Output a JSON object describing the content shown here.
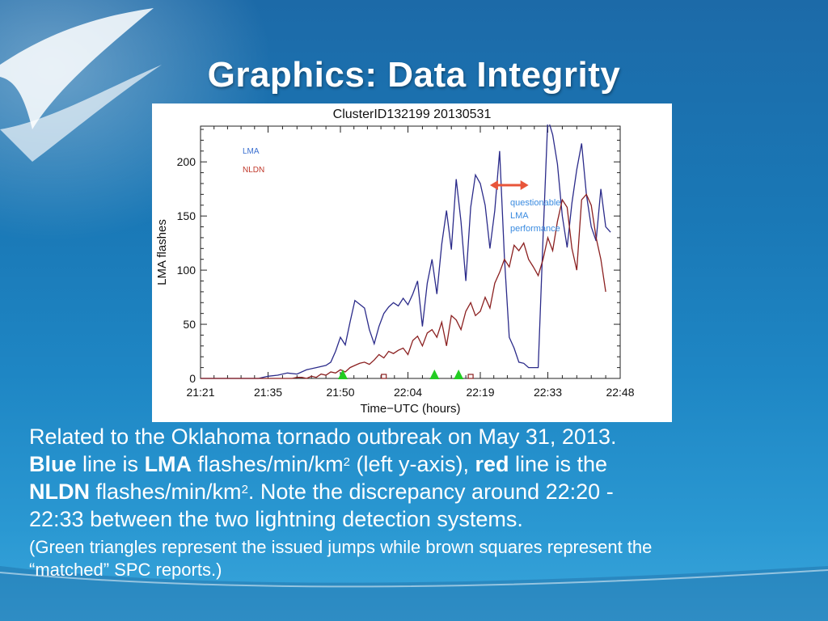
{
  "slide": {
    "title": "Graphics: Data Integrity",
    "body": {
      "line1": "Related to the Oklahoma tornado outbreak on May 31, 2013.",
      "blue_word": "Blue",
      "t1": " line is ",
      "lma_word": "LMA",
      "t2": " flashes/min/km",
      "sup1": "2",
      "t3": " (left y-axis), ",
      "red_word": "red",
      "t4": " line is the",
      "nldn_word": "NLDN",
      "t5": " flashes/min/km",
      "sup2": "2",
      "t6": ". Note the discrepancy around 22:20 -",
      "t7": "22:33 between the two lightning detection systems.",
      "note_line1": "(Green triangles represent the issued jumps while brown squares represent the",
      "note_line2": "“matched” SPC reports.)"
    }
  },
  "colors": {
    "lma": "#2b2b8a",
    "nldn": "#8b2020",
    "triangle": "#22cc22",
    "square": "#8b2020",
    "arrow": "#e8553a",
    "annotation": "#3a8be0"
  },
  "chart_data": {
    "type": "line",
    "title": "ClusterID132199 20130531",
    "xlabel": "Time−UTC (hours)",
    "ylabel": "LMA flashes",
    "xlim": [
      0,
      87
    ],
    "ylim": [
      0,
      233
    ],
    "x_ticks": [
      {
        "x": 0,
        "label": "21:21"
      },
      {
        "x": 14,
        "label": "21:35"
      },
      {
        "x": 29,
        "label": "21:50"
      },
      {
        "x": 43,
        "label": "22:04"
      },
      {
        "x": 58,
        "label": "22:19"
      },
      {
        "x": 72,
        "label": "22:33"
      },
      {
        "x": 87,
        "label": "22:48"
      }
    ],
    "y_ticks": [
      0,
      50,
      100,
      150,
      200
    ],
    "legend": [
      "LMA",
      "NLDN"
    ],
    "legend_placement": "top-left",
    "grid": false,
    "series": [
      {
        "name": "LMA",
        "x": [
          0,
          12,
          14,
          16,
          18,
          20,
          22,
          24,
          26,
          27,
          28,
          29,
          30,
          31,
          32,
          34,
          35,
          36,
          37,
          38,
          39,
          40,
          41,
          42,
          43,
          44,
          45,
          46,
          47,
          48,
          49,
          50,
          51,
          52,
          53,
          54,
          55,
          56,
          57,
          58,
          59,
          60,
          61,
          62,
          63,
          64,
          65,
          66,
          67,
          68,
          69,
          70,
          71,
          72,
          73,
          74,
          75,
          76,
          77,
          78,
          79,
          80,
          81,
          82,
          83,
          84,
          85
        ],
        "values": [
          0,
          0,
          2,
          3,
          5,
          4,
          8,
          10,
          12,
          15,
          25,
          38,
          31,
          52,
          72,
          65,
          45,
          32,
          48,
          60,
          66,
          70,
          67,
          74,
          68,
          78,
          90,
          48,
          88,
          110,
          78,
          124,
          155,
          119,
          184,
          145,
          90,
          158,
          188,
          180,
          160,
          120,
          155,
          210,
          112,
          38,
          28,
          15,
          14,
          10,
          10,
          10,
          130,
          240,
          225,
          198,
          150,
          121,
          162,
          193,
          217,
          170,
          140,
          127,
          175,
          140,
          135
        ]
      },
      {
        "name": "NLDN",
        "x": [
          0,
          19,
          20,
          21,
          22,
          23,
          24,
          25,
          26,
          27,
          28,
          29,
          30,
          31,
          32,
          33,
          34,
          35,
          36,
          37,
          38,
          39,
          40,
          41,
          42,
          43,
          44,
          45,
          46,
          47,
          48,
          49,
          50,
          51,
          52,
          53,
          54,
          55,
          56,
          57,
          58,
          59,
          60,
          61,
          62,
          63,
          64,
          65,
          66,
          67,
          68,
          69,
          70,
          71,
          72,
          73,
          74,
          75,
          76,
          77,
          78,
          79,
          80,
          81,
          82,
          83,
          84
        ],
        "values": [
          0,
          0,
          1,
          1,
          0,
          2,
          1,
          4,
          3,
          6,
          5,
          8,
          6,
          10,
          12,
          14,
          15,
          13,
          17,
          22,
          19,
          25,
          23,
          26,
          28,
          22,
          35,
          39,
          30,
          42,
          45,
          38,
          52,
          30,
          58,
          54,
          45,
          62,
          70,
          58,
          62,
          75,
          65,
          88,
          98,
          110,
          103,
          123,
          118,
          125,
          110,
          103,
          95,
          110,
          130,
          118,
          145,
          165,
          158,
          120,
          100,
          165,
          170,
          160,
          130,
          110,
          80
        ]
      }
    ],
    "markers": {
      "triangles_x": [
        29.5,
        48.5,
        53.5
      ],
      "squares_x": [
        38,
        56
      ]
    },
    "annotation": {
      "text": [
        "questionable",
        "LMA",
        "performance"
      ],
      "arrow_x": [
        60,
        68
      ]
    }
  }
}
